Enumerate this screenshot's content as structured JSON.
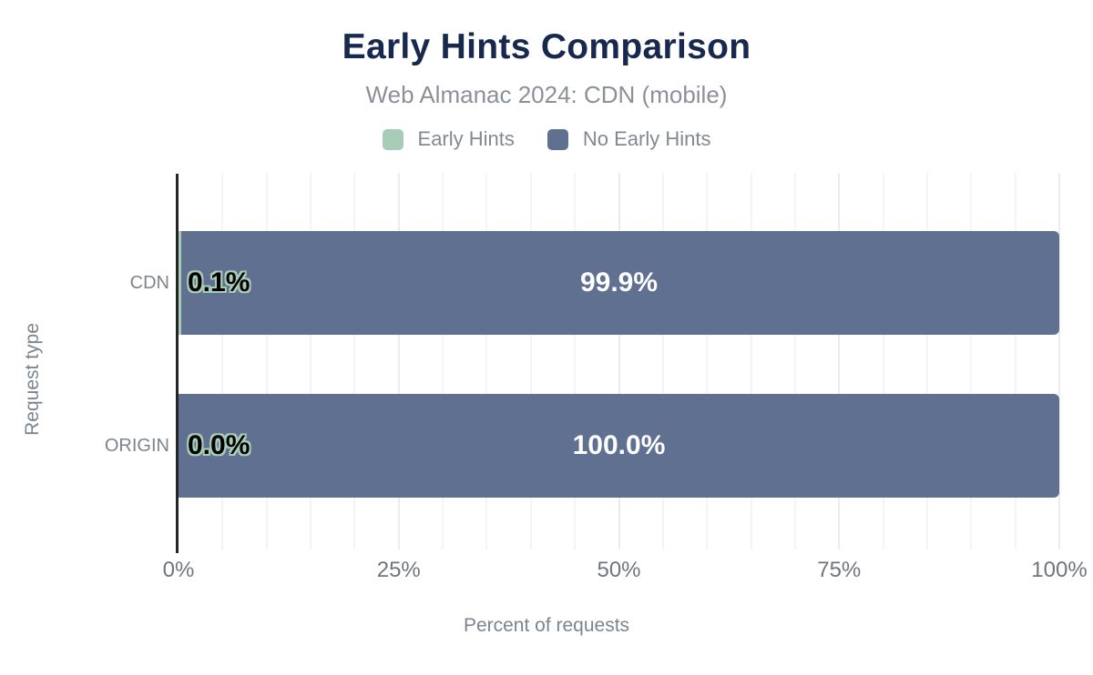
{
  "title": "Early Hints Comparison",
  "subtitle": "Web Almanac 2024: CDN (mobile)",
  "legend": {
    "items": [
      {
        "label": "Early Hints",
        "color": "#a8ccb8"
      },
      {
        "label": "No Early Hints",
        "color": "#5f7090"
      }
    ]
  },
  "chart_data": {
    "type": "bar",
    "orientation": "horizontal",
    "stacked": true,
    "title": "Early Hints Comparison",
    "subtitle": "Web Almanac 2024: CDN (mobile)",
    "categories": [
      "CDN",
      "ORIGIN"
    ],
    "series": [
      {
        "name": "Early Hints",
        "color": "#a8ccb8",
        "values": [
          0.1,
          0.0
        ],
        "data_labels": [
          "0.1%",
          "0.0%"
        ]
      },
      {
        "name": "No Early Hints",
        "color": "#5f7090",
        "values": [
          99.9,
          100.0
        ],
        "data_labels": [
          "99.9%",
          "100.0%"
        ]
      }
    ],
    "xlabel": "Percent of requests",
    "ylabel": "Request type",
    "xlim": [
      0,
      100
    ],
    "xticks": [
      {
        "value": 0,
        "label": "0%"
      },
      {
        "value": 25,
        "label": "25%"
      },
      {
        "value": 50,
        "label": "50%"
      },
      {
        "value": 75,
        "label": "75%"
      },
      {
        "value": 100,
        "label": "100%"
      }
    ],
    "grid": {
      "show": true,
      "axis": "x",
      "minor_step": 5,
      "major_step": 25
    },
    "legend_position": "top"
  },
  "colors": {
    "title": "#17294e",
    "muted_text": "#7c848d",
    "tick_text": "#70767d",
    "bar_green": "#a8ccb8",
    "bar_blue": "#5f7090",
    "axis_line": "#252525",
    "grid_minor": "#f4f4f6",
    "grid_major": "#ececef",
    "label_on_blue": "#ffffff",
    "label_on_green_text": "#000000",
    "label_on_green_halo": "#a8ccb8"
  }
}
